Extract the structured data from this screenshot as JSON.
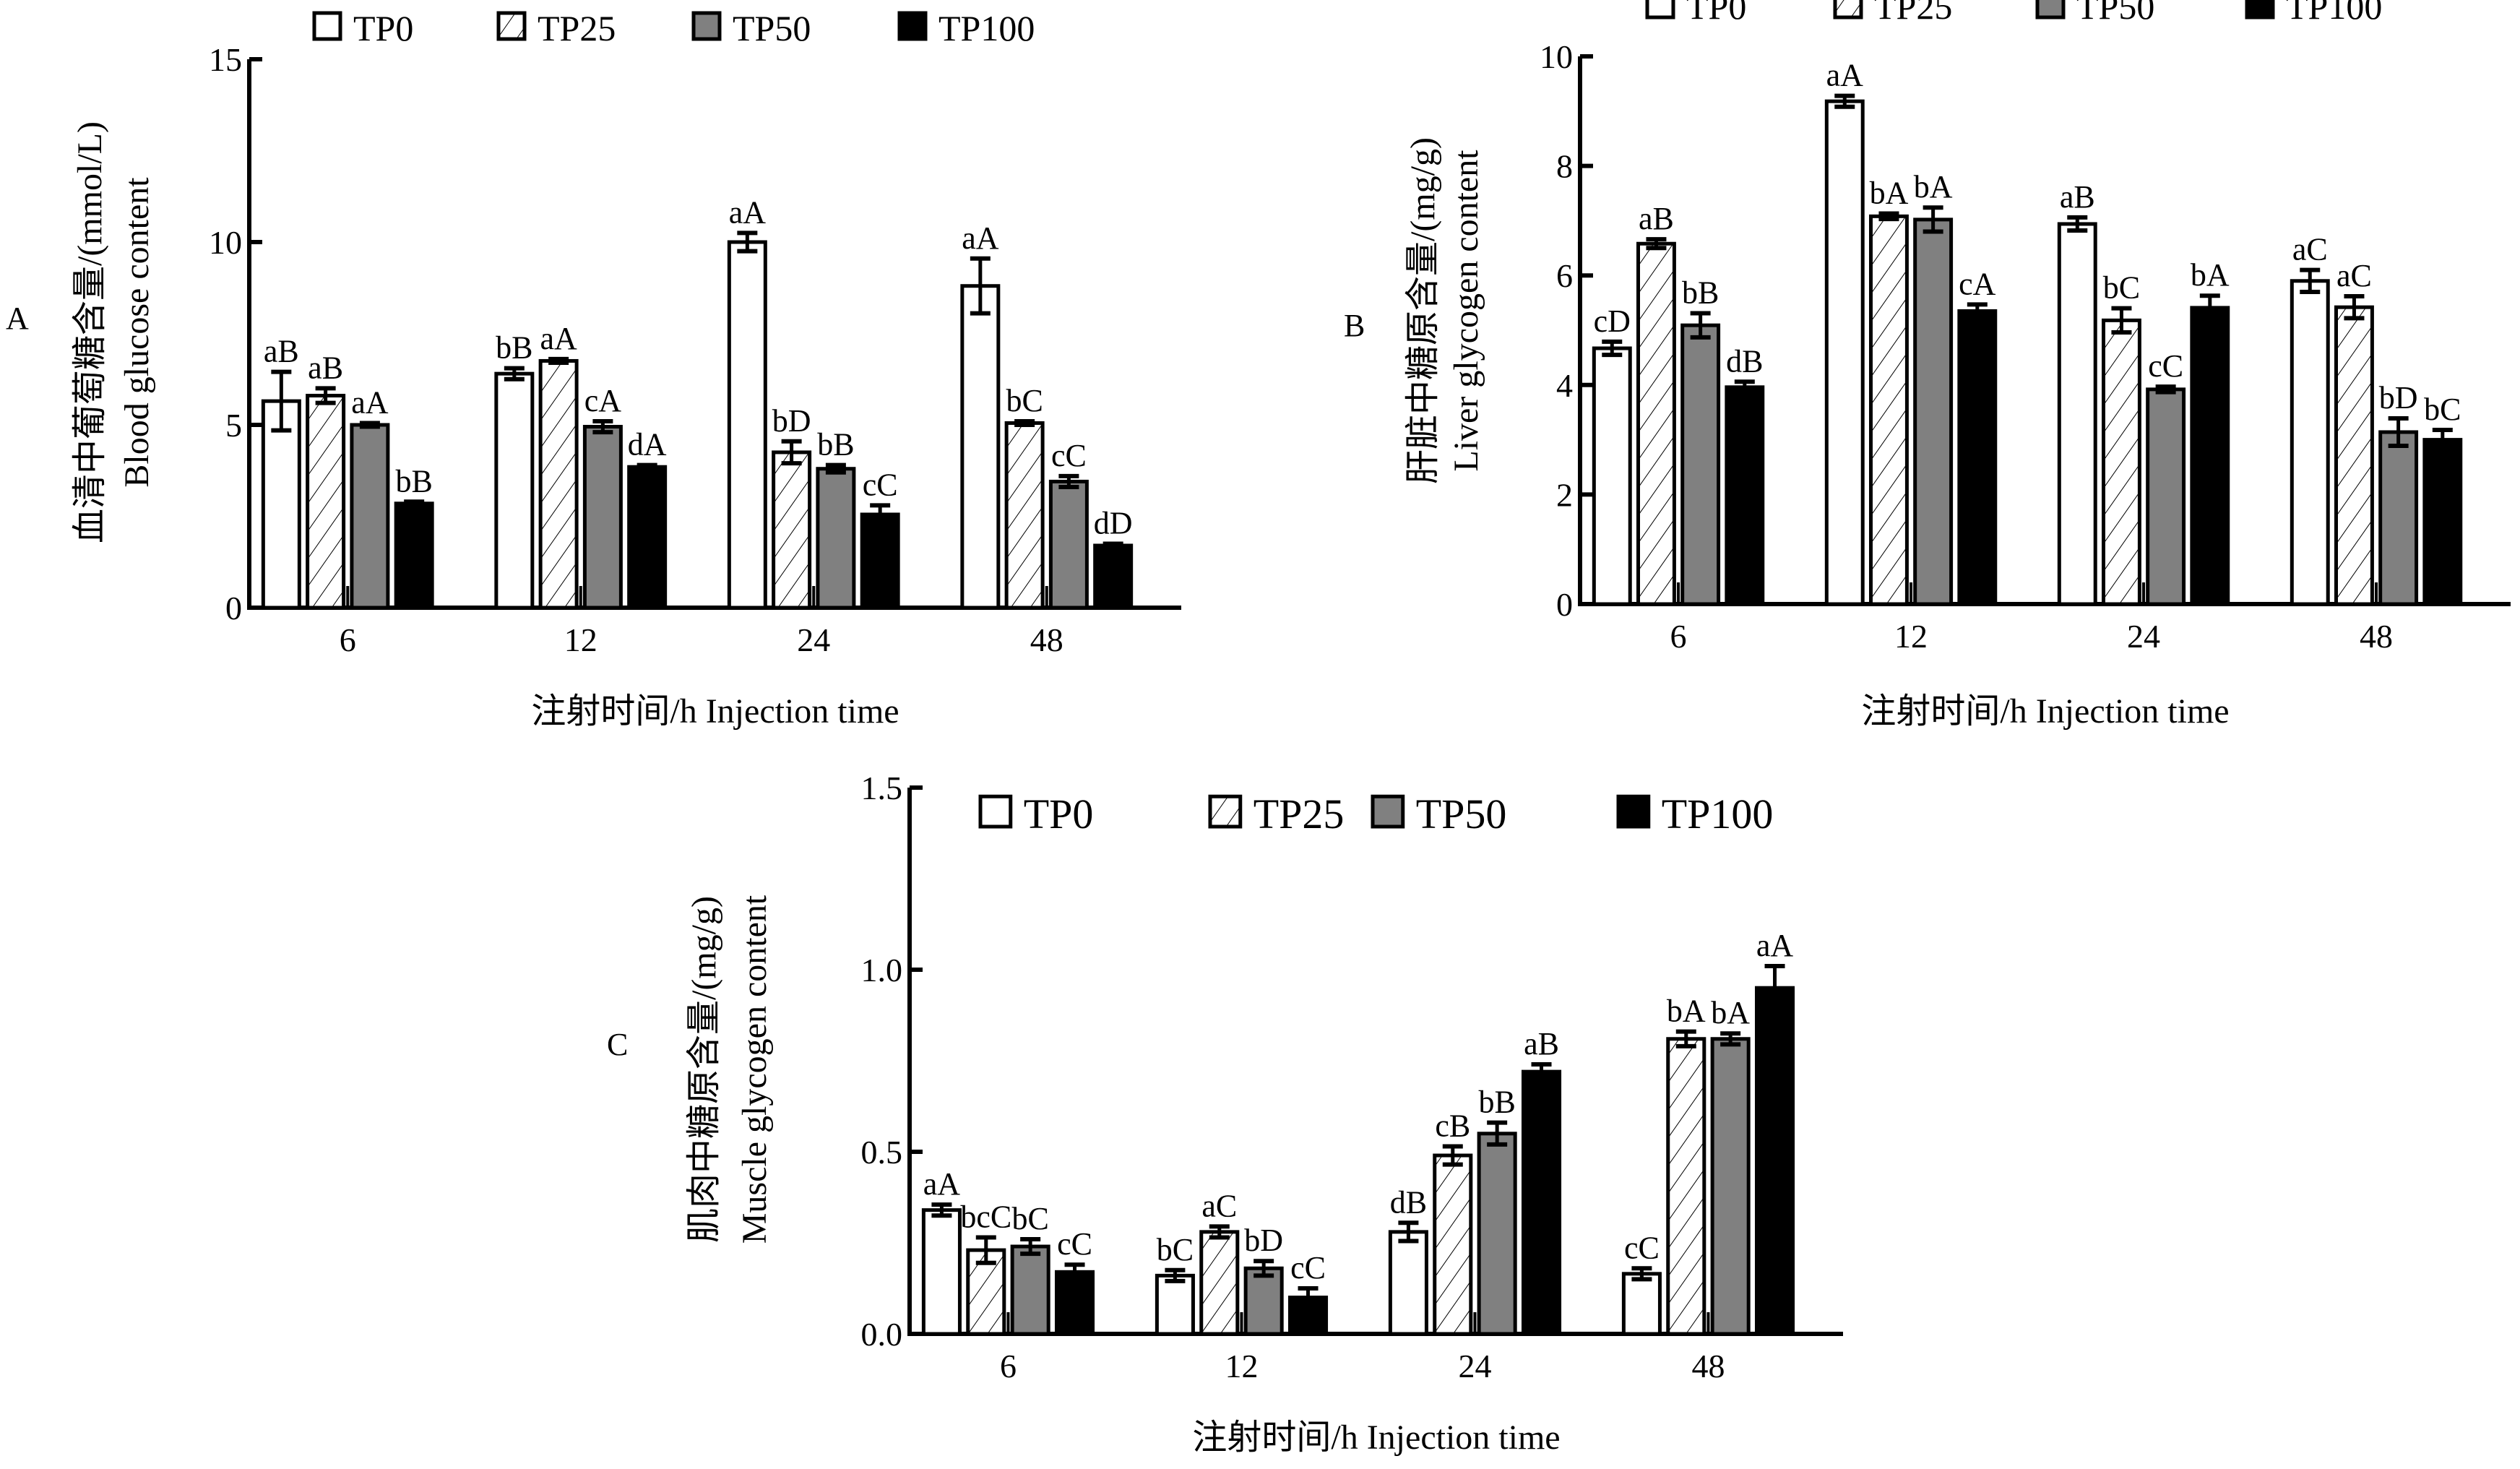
{
  "legend": [
    "TP0",
    "TP25",
    "TP50",
    "TP100"
  ],
  "colors": {
    "TP0": "#ffffff",
    "TP25": "hatch",
    "TP50": "#808080",
    "TP100": "#000000"
  },
  "chart_data": [
    {
      "panel": "A",
      "type": "bar",
      "title": "",
      "xlabel": "注射时间/h  Injection time",
      "ylabel_cn": "血清中葡萄糖含量/(mmol/L)",
      "ylabel_en": "Blood glucose content",
      "categories": [
        "6",
        "12",
        "24",
        "48"
      ],
      "ylim": [
        0,
        15
      ],
      "yticks": [
        "0",
        "5",
        "10",
        "15"
      ],
      "legend_position": "top",
      "series": [
        {
          "name": "TP0",
          "values": [
            5.65,
            6.4,
            10.0,
            8.8
          ],
          "errors": [
            0.8,
            0.15,
            0.25,
            0.75
          ],
          "labels": [
            "aB",
            "bB",
            "aA",
            "aA"
          ]
        },
        {
          "name": "TP25",
          "values": [
            5.8,
            6.75,
            4.25,
            5.05
          ],
          "errors": [
            0.2,
            0.05,
            0.3,
            0.05
          ],
          "labels": [
            "aB",
            "aA",
            "bD",
            "bC"
          ]
        },
        {
          "name": "TP50",
          "values": [
            5.0,
            4.95,
            3.8,
            3.45
          ],
          "errors": [
            0.05,
            0.15,
            0.1,
            0.15
          ],
          "labels": [
            "aA",
            "cA",
            "bB",
            "cC"
          ]
        },
        {
          "name": "TP100",
          "values": [
            2.85,
            3.85,
            2.55,
            1.7
          ],
          "errors": [
            0.05,
            0.05,
            0.25,
            0.05
          ],
          "labels": [
            "bB",
            "dA",
            "cC",
            "dD"
          ]
        }
      ]
    },
    {
      "panel": "B",
      "type": "bar",
      "title": "",
      "xlabel": "注射时间/h  Injection time",
      "ylabel_cn": "肝脏中糖原含量/(mg/g)",
      "ylabel_en": "Liver glycogen content",
      "categories": [
        "6",
        "12",
        "24",
        "48"
      ],
      "ylim": [
        0,
        10
      ],
      "yticks": [
        "0",
        "2",
        "4",
        "6",
        "8",
        "10"
      ],
      "legend_position": "top",
      "series": [
        {
          "name": "TP0",
          "values": [
            4.67,
            9.18,
            6.94,
            5.9
          ],
          "errors": [
            0.12,
            0.1,
            0.12,
            0.2
          ],
          "labels": [
            "cD",
            "aA",
            "aB",
            "aC"
          ]
        },
        {
          "name": "TP25",
          "values": [
            6.58,
            7.08,
            5.18,
            5.42
          ],
          "errors": [
            0.08,
            0.05,
            0.22,
            0.2
          ],
          "labels": [
            "aB",
            "bA",
            "bC",
            "aC"
          ]
        },
        {
          "name": "TP50",
          "values": [
            5.09,
            7.02,
            3.92,
            3.14
          ],
          "errors": [
            0.22,
            0.22,
            0.05,
            0.25
          ],
          "labels": [
            "bB",
            "bA",
            "cC",
            "bD"
          ]
        },
        {
          "name": "TP100",
          "values": [
            3.96,
            5.35,
            5.41,
            3.0
          ],
          "errors": [
            0.1,
            0.12,
            0.22,
            0.18
          ],
          "labels": [
            "dB",
            "cA",
            "bA",
            "bC"
          ]
        }
      ]
    },
    {
      "panel": "C",
      "type": "bar",
      "title": "",
      "xlabel": "注射时间/h  Injection time",
      "ylabel_cn": "肌肉中糖原含量/(mg/g)",
      "ylabel_en": "Muscle glycogen content",
      "categories": [
        "6",
        "12",
        "24",
        "48"
      ],
      "ylim": [
        0,
        1.5
      ],
      "yticks": [
        "0.0",
        "0.5",
        "1.0",
        "1.5"
      ],
      "legend_position": "top",
      "series": [
        {
          "name": "TP0",
          "values": [
            0.34,
            0.16,
            0.28,
            0.165
          ],
          "errors": [
            0.015,
            0.015,
            0.025,
            0.015
          ],
          "labels": [
            "aA",
            "bC",
            "dB",
            "cC"
          ]
        },
        {
          "name": "TP25",
          "values": [
            0.23,
            0.28,
            0.49,
            0.81
          ],
          "errors": [
            0.035,
            0.015,
            0.025,
            0.02
          ],
          "labels": [
            "bcC",
            "aC",
            "cB",
            "bA"
          ]
        },
        {
          "name": "TP50",
          "values": [
            0.24,
            0.18,
            0.55,
            0.81
          ],
          "errors": [
            0.02,
            0.02,
            0.03,
            0.015
          ],
          "labels": [
            "bC",
            "bD",
            "bB",
            "bA"
          ]
        },
        {
          "name": "TP100",
          "values": [
            0.17,
            0.1,
            0.72,
            0.95
          ],
          "errors": [
            0.02,
            0.025,
            0.02,
            0.06
          ],
          "labels": [
            "cC",
            "cC",
            "aB",
            "aA"
          ]
        }
      ]
    }
  ]
}
